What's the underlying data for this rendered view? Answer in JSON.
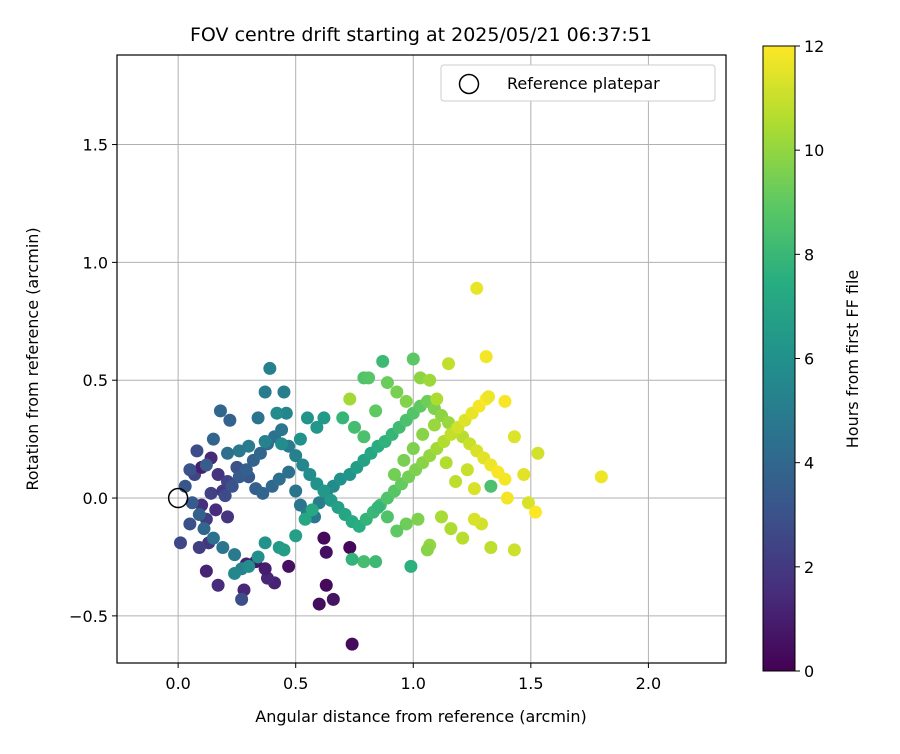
{
  "chart_data": {
    "type": "scatter",
    "title": "FOV centre drift starting at 2025/05/21 06:37:51",
    "xlabel": "Angular distance from reference (arcmin)",
    "ylabel": "Rotation from reference (arcmin)",
    "xlim": [
      -0.26,
      2.33
    ],
    "ylim": [
      -0.7,
      1.88
    ],
    "xticks": [
      "0.0",
      "0.5",
      "1.0",
      "1.5",
      "2.0"
    ],
    "xtick_values": [
      0.0,
      0.5,
      1.0,
      1.5,
      2.0
    ],
    "yticks": [
      "−0.5",
      "0.0",
      "0.5",
      "1.0",
      "1.5"
    ],
    "ytick_values": [
      -0.5,
      0.0,
      0.5,
      1.0,
      1.5
    ],
    "grid": true,
    "legend": {
      "label": "Reference platepar",
      "placement": "top-right"
    },
    "reference_point": {
      "x": 0.0,
      "y": 0.0
    },
    "colorbar": {
      "label": "Hours from first FF file",
      "range": [
        0,
        12
      ],
      "ticks": [
        "0",
        "2",
        "4",
        "6",
        "8",
        "10",
        "12"
      ],
      "tick_values": [
        0,
        2,
        4,
        6,
        8,
        10,
        12
      ],
      "colormap": "viridis"
    },
    "series": [
      {
        "points": [
          [
            0.74,
            -0.62,
            0.3
          ],
          [
            0.6,
            -0.45,
            0.4
          ],
          [
            0.66,
            -0.43,
            0.6
          ],
          [
            0.63,
            -0.37,
            0.3
          ],
          [
            0.63,
            -0.23,
            0.5
          ],
          [
            0.73,
            -0.21,
            0.2
          ],
          [
            0.62,
            -0.17,
            0.3
          ],
          [
            0.47,
            -0.29,
            0.5
          ],
          [
            0.41,
            -0.36,
            1.2
          ],
          [
            0.38,
            -0.34,
            1.3
          ],
          [
            0.37,
            -0.3,
            1.0
          ],
          [
            0.33,
            -0.27,
            0.7
          ],
          [
            0.29,
            -0.28,
            1.1
          ],
          [
            0.28,
            -0.39,
            1.3
          ],
          [
            0.12,
            -0.31,
            1.2
          ],
          [
            0.17,
            -0.37,
            1.5
          ],
          [
            0.27,
            -0.43,
            2.8
          ],
          [
            0.13,
            -0.19,
            1.9
          ],
          [
            0.09,
            -0.21,
            2.2
          ],
          [
            0.01,
            -0.19,
            2.6
          ],
          [
            0.05,
            -0.11,
            2.9
          ],
          [
            0.12,
            -0.09,
            2.1
          ],
          [
            0.21,
            -0.08,
            1.8
          ],
          [
            0.16,
            -0.05,
            1.5
          ],
          [
            0.1,
            -0.03,
            1.6
          ],
          [
            0.14,
            0.02,
            2.3
          ],
          [
            0.19,
            0.03,
            2.0
          ],
          [
            0.07,
            0.1,
            2.5
          ],
          [
            0.1,
            0.13,
            1.0
          ],
          [
            0.14,
            0.17,
            1.4
          ],
          [
            0.17,
            0.1,
            1.8
          ],
          [
            0.21,
            0.07,
            2.4
          ],
          [
            0.25,
            0.13,
            3.0
          ],
          [
            0.3,
            0.09,
            3.3
          ],
          [
            0.33,
            0.04,
            3.6
          ],
          [
            0.36,
            0.02,
            3.9
          ],
          [
            0.4,
            0.05,
            4.1
          ],
          [
            0.43,
            0.08,
            4.3
          ],
          [
            0.47,
            0.11,
            4.4
          ],
          [
            0.5,
            0.03,
            4.6
          ],
          [
            0.52,
            -0.03,
            4.7
          ],
          [
            0.55,
            -0.06,
            4.9
          ],
          [
            0.58,
            -0.08,
            4.8
          ],
          [
            0.6,
            -0.02,
            5.1
          ],
          [
            0.63,
            0.02,
            5.4
          ],
          [
            0.66,
            0.05,
            5.7
          ],
          [
            0.69,
            0.08,
            6.0
          ],
          [
            0.73,
            0.1,
            6.2
          ],
          [
            0.76,
            0.13,
            6.6
          ],
          [
            0.79,
            0.16,
            6.9
          ],
          [
            0.82,
            0.19,
            7.1
          ],
          [
            0.85,
            0.22,
            7.4
          ],
          [
            0.88,
            0.24,
            7.7
          ],
          [
            0.91,
            0.27,
            7.9
          ],
          [
            0.94,
            0.3,
            8.2
          ],
          [
            0.97,
            0.33,
            8.5
          ],
          [
            1.0,
            0.36,
            8.7
          ],
          [
            1.03,
            0.39,
            9.0
          ],
          [
            1.06,
            0.41,
            9.3
          ],
          [
            1.09,
            0.38,
            9.6
          ],
          [
            1.12,
            0.35,
            9.9
          ],
          [
            1.15,
            0.32,
            10.1
          ],
          [
            1.18,
            0.29,
            10.4
          ],
          [
            1.21,
            0.26,
            10.7
          ],
          [
            1.24,
            0.23,
            11.0
          ],
          [
            1.27,
            0.2,
            11.3
          ],
          [
            1.3,
            0.17,
            11.5
          ],
          [
            1.33,
            0.14,
            11.7
          ],
          [
            1.36,
            0.11,
            11.9
          ],
          [
            1.39,
            0.08,
            11.8
          ],
          [
            0.2,
            0.01,
            2.7
          ],
          [
            0.23,
            0.05,
            3.1
          ],
          [
            0.26,
            0.09,
            3.4
          ],
          [
            0.29,
            0.12,
            3.6
          ],
          [
            0.32,
            0.16,
            3.8
          ],
          [
            0.35,
            0.19,
            4.0
          ],
          [
            0.38,
            0.23,
            4.2
          ],
          [
            0.41,
            0.26,
            4.5
          ],
          [
            0.44,
            0.29,
            4.7
          ],
          [
            0.47,
            0.22,
            5.0
          ],
          [
            0.5,
            0.18,
            5.2
          ],
          [
            0.53,
            0.14,
            5.5
          ],
          [
            0.56,
            0.1,
            5.8
          ],
          [
            0.59,
            0.06,
            6.1
          ],
          [
            0.62,
            0.03,
            6.3
          ],
          [
            0.65,
            -0.01,
            6.5
          ],
          [
            0.68,
            -0.04,
            6.8
          ],
          [
            0.71,
            -0.07,
            7.0
          ],
          [
            0.74,
            -0.1,
            7.3
          ],
          [
            0.77,
            -0.12,
            7.5
          ],
          [
            0.8,
            -0.09,
            7.8
          ],
          [
            0.83,
            -0.06,
            8.0
          ],
          [
            0.86,
            -0.03,
            8.3
          ],
          [
            0.89,
            0.0,
            8.6
          ],
          [
            0.92,
            0.03,
            8.8
          ],
          [
            0.95,
            0.06,
            9.1
          ],
          [
            0.98,
            0.09,
            9.4
          ],
          [
            1.01,
            0.12,
            9.6
          ],
          [
            1.04,
            0.15,
            9.8
          ],
          [
            1.07,
            0.18,
            10.0
          ],
          [
            1.1,
            0.21,
            10.3
          ],
          [
            1.13,
            0.24,
            10.6
          ],
          [
            1.16,
            0.27,
            10.9
          ],
          [
            1.19,
            0.3,
            11.2
          ],
          [
            1.22,
            0.33,
            11.4
          ],
          [
            1.25,
            0.36,
            11.6
          ],
          [
            1.28,
            0.39,
            11.8
          ],
          [
            1.31,
            0.42,
            12.0
          ],
          [
            0.39,
            0.55,
            5.2
          ],
          [
            0.37,
            0.45,
            5.0
          ],
          [
            0.45,
            0.45,
            5.1
          ],
          [
            0.18,
            0.37,
            4.0
          ],
          [
            0.22,
            0.33,
            3.8
          ],
          [
            0.34,
            0.34,
            4.6
          ],
          [
            0.46,
            0.36,
            5.4
          ],
          [
            0.42,
            0.36,
            5.7
          ],
          [
            0.55,
            0.34,
            6.1
          ],
          [
            0.62,
            0.34,
            6.4
          ],
          [
            0.59,
            0.3,
            6.3
          ],
          [
            0.52,
            0.25,
            6.0
          ],
          [
            0.44,
            0.23,
            5.8
          ],
          [
            0.37,
            0.24,
            5.3
          ],
          [
            0.3,
            0.22,
            5.0
          ],
          [
            0.26,
            0.2,
            4.8
          ],
          [
            0.21,
            0.19,
            4.4
          ],
          [
            0.15,
            0.25,
            3.9
          ],
          [
            0.12,
            0.14,
            3.5
          ],
          [
            0.08,
            0.2,
            2.8
          ],
          [
            0.05,
            0.12,
            3.0
          ],
          [
            0.03,
            0.05,
            3.2
          ],
          [
            0.06,
            -0.02,
            3.4
          ],
          [
            0.09,
            -0.07,
            3.7
          ],
          [
            0.11,
            -0.13,
            4.0
          ],
          [
            0.15,
            -0.17,
            4.4
          ],
          [
            0.19,
            -0.21,
            4.7
          ],
          [
            0.24,
            -0.24,
            4.9
          ],
          [
            0.27,
            -0.3,
            5.3
          ],
          [
            0.24,
            -0.32,
            5.5
          ],
          [
            0.3,
            -0.29,
            5.8
          ],
          [
            0.34,
            -0.25,
            5.9
          ],
          [
            0.37,
            -0.19,
            6.1
          ],
          [
            0.43,
            -0.21,
            6.4
          ],
          [
            0.45,
            -0.22,
            6.6
          ],
          [
            0.5,
            -0.16,
            6.8
          ],
          [
            0.54,
            -0.09,
            7.1
          ],
          [
            0.57,
            -0.05,
            7.2
          ],
          [
            0.87,
            0.58,
            8.1
          ],
          [
            0.79,
            0.51,
            8.6
          ],
          [
            0.81,
            0.51,
            8.8
          ],
          [
            0.73,
            0.42,
            10.3
          ],
          [
            0.7,
            0.34,
            7.9
          ],
          [
            0.75,
            0.3,
            8.3
          ],
          [
            0.79,
            0.26,
            8.5
          ],
          [
            0.84,
            0.37,
            9.0
          ],
          [
            0.89,
            0.49,
            9.2
          ],
          [
            0.93,
            0.45,
            9.5
          ],
          [
            0.97,
            0.41,
            9.7
          ],
          [
            1.0,
            0.59,
            8.9
          ],
          [
            1.03,
            0.51,
            9.9
          ],
          [
            1.07,
            0.5,
            10.2
          ],
          [
            1.1,
            0.42,
            10.5
          ],
          [
            1.15,
            0.57,
            10.9
          ],
          [
            1.27,
            0.89,
            11.6
          ],
          [
            1.31,
            0.6,
            11.8
          ],
          [
            1.32,
            0.43,
            11.7
          ],
          [
            1.39,
            0.41,
            11.9
          ],
          [
            1.43,
            0.26,
            11.4
          ],
          [
            1.53,
            0.19,
            11.2
          ],
          [
            1.8,
            0.09,
            11.7
          ],
          [
            1.47,
            0.1,
            11.5
          ],
          [
            1.4,
            0.0,
            11.8
          ],
          [
            1.49,
            -0.02,
            11.3
          ],
          [
            1.52,
            -0.06,
            12.0
          ],
          [
            1.43,
            -0.22,
            11.1
          ],
          [
            1.33,
            -0.21,
            10.8
          ],
          [
            1.29,
            -0.11,
            11.2
          ],
          [
            1.26,
            -0.09,
            11.3
          ],
          [
            1.21,
            -0.17,
            10.7
          ],
          [
            1.16,
            -0.13,
            10.5
          ],
          [
            1.12,
            -0.08,
            10.4
          ],
          [
            1.07,
            -0.2,
            10.0
          ],
          [
            1.06,
            -0.22,
            9.8
          ],
          [
            1.02,
            -0.09,
            9.6
          ],
          [
            0.97,
            -0.11,
            9.3
          ],
          [
            0.93,
            -0.14,
            9.0
          ],
          [
            0.89,
            -0.08,
            8.6
          ],
          [
            0.84,
            -0.27,
            8.1
          ],
          [
            0.79,
            -0.27,
            8.3
          ],
          [
            0.74,
            -0.26,
            7.8
          ],
          [
            0.99,
            -0.29,
            7.6
          ],
          [
            0.85,
            -0.04,
            7.9
          ],
          [
            0.92,
            0.1,
            9.4
          ],
          [
            0.96,
            0.16,
            9.5
          ],
          [
            1.0,
            0.21,
            9.6
          ],
          [
            1.04,
            0.27,
            9.8
          ],
          [
            1.09,
            0.31,
            10.1
          ],
          [
            1.14,
            0.15,
            10.6
          ],
          [
            1.18,
            0.07,
            10.8
          ],
          [
            1.23,
            0.12,
            11.0
          ],
          [
            1.26,
            0.04,
            11.3
          ],
          [
            1.33,
            0.05,
            8.5
          ]
        ]
      }
    ]
  }
}
